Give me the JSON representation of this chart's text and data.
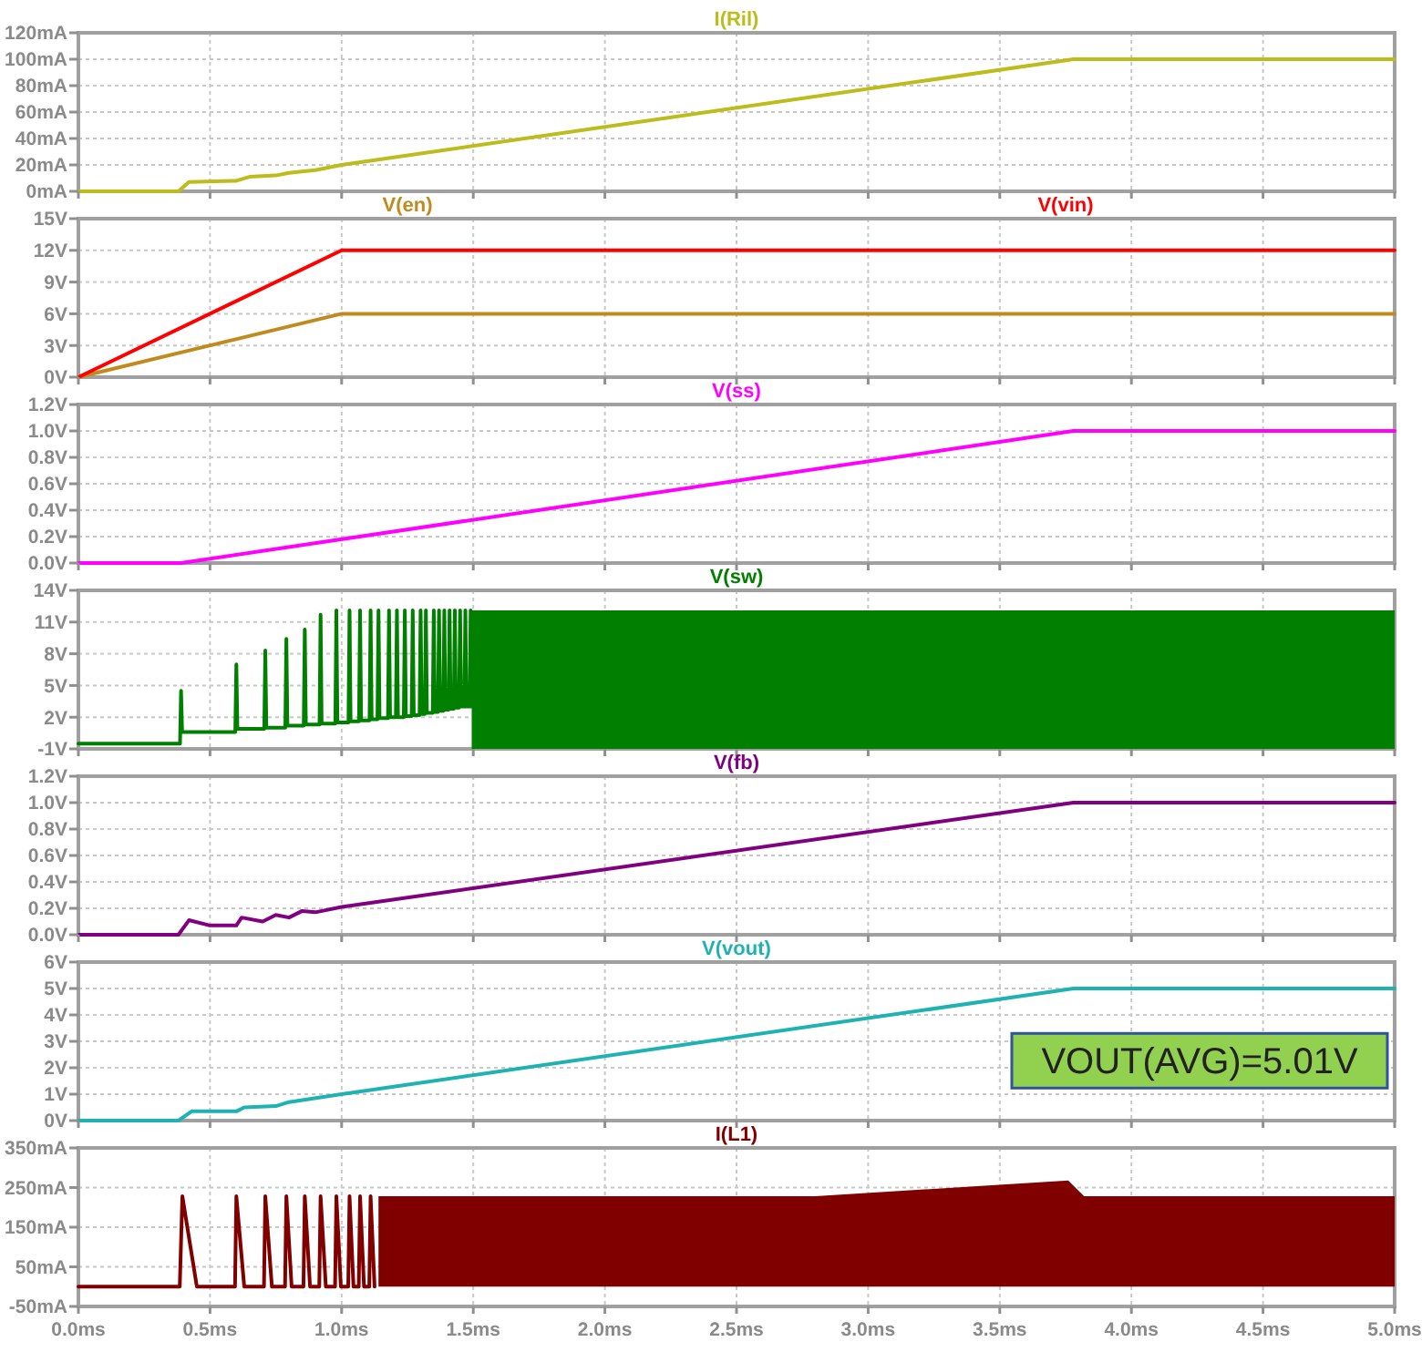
{
  "chart_data": [
    {
      "type": "line",
      "grid": true,
      "tick_labels": "y",
      "xlim": [
        0,
        5
      ],
      "xticks": [
        {
          "value": 0,
          "label": null
        },
        {
          "value": 0.5,
          "label": null
        },
        {
          "value": 1,
          "label": null
        },
        {
          "value": 1.5,
          "label": null
        },
        {
          "value": 2,
          "label": null
        },
        {
          "value": 2.5,
          "label": null
        },
        {
          "value": 3,
          "label": null
        },
        {
          "value": 3.5,
          "label": null
        },
        {
          "value": 4,
          "label": null
        },
        {
          "value": 4.5,
          "label": null
        },
        {
          "value": 5,
          "label": null
        }
      ],
      "ylim": [
        0,
        120
      ],
      "yticks": [
        {
          "value": 0,
          "label": "0mA"
        },
        {
          "value": 20,
          "label": "20mA"
        },
        {
          "value": 40,
          "label": "40mA"
        },
        {
          "value": 60,
          "label": "60mA"
        },
        {
          "value": 80,
          "label": "80mA"
        },
        {
          "value": 100,
          "label": "100mA"
        },
        {
          "value": 120,
          "label": "120mA"
        }
      ],
      "series": [
        {
          "name": "I(Ril)",
          "color": "#bcbc1c",
          "x": [
            0,
            0.38,
            0.42,
            0.6,
            0.65,
            0.75,
            0.8,
            0.9,
            1.0,
            3.78,
            5
          ],
          "values": [
            0,
            0,
            7,
            8,
            11,
            12,
            14,
            16,
            20,
            100,
            100
          ]
        }
      ]
    },
    {
      "type": "line",
      "grid": true,
      "tick_labels": "y",
      "xlim": [
        0,
        5
      ],
      "xticks": [
        {
          "value": 0,
          "label": null
        },
        {
          "value": 0.5,
          "label": null
        },
        {
          "value": 1,
          "label": null
        },
        {
          "value": 1.5,
          "label": null
        },
        {
          "value": 2,
          "label": null
        },
        {
          "value": 2.5,
          "label": null
        },
        {
          "value": 3,
          "label": null
        },
        {
          "value": 3.5,
          "label": null
        },
        {
          "value": 4,
          "label": null
        },
        {
          "value": 4.5,
          "label": null
        },
        {
          "value": 5,
          "label": null
        }
      ],
      "ylim": [
        0,
        15
      ],
      "yticks": [
        {
          "value": 0,
          "label": "0V"
        },
        {
          "value": 3,
          "label": "3V"
        },
        {
          "value": 6,
          "label": "6V"
        },
        {
          "value": 9,
          "label": "9V"
        },
        {
          "value": 12,
          "label": "12V"
        },
        {
          "value": 15,
          "label": "15V"
        }
      ],
      "series": [
        {
          "name": "V(en)",
          "color": "#c08a1e",
          "x": [
            0,
            1,
            5
          ],
          "values": [
            0,
            6,
            6
          ]
        },
        {
          "name": "V(vin)",
          "color": "#ff0000",
          "x": [
            0,
            1,
            5
          ],
          "values": [
            0,
            12,
            12
          ]
        }
      ]
    },
    {
      "type": "line",
      "grid": true,
      "tick_labels": "y",
      "xlim": [
        0,
        5
      ],
      "xticks": [
        {
          "value": 0,
          "label": null
        },
        {
          "value": 0.5,
          "label": null
        },
        {
          "value": 1,
          "label": null
        },
        {
          "value": 1.5,
          "label": null
        },
        {
          "value": 2,
          "label": null
        },
        {
          "value": 2.5,
          "label": null
        },
        {
          "value": 3,
          "label": null
        },
        {
          "value": 3.5,
          "label": null
        },
        {
          "value": 4,
          "label": null
        },
        {
          "value": 4.5,
          "label": null
        },
        {
          "value": 5,
          "label": null
        }
      ],
      "ylim": [
        0,
        1.2
      ],
      "yticks": [
        {
          "value": 0,
          "label": "0.0V"
        },
        {
          "value": 0.2,
          "label": "0.2V"
        },
        {
          "value": 0.4,
          "label": "0.4V"
        },
        {
          "value": 0.6,
          "label": "0.6V"
        },
        {
          "value": 0.8,
          "label": "0.8V"
        },
        {
          "value": 1,
          "label": "1.0V"
        },
        {
          "value": 1.2,
          "label": "1.2V"
        }
      ],
      "series": [
        {
          "name": "V(ss)",
          "color": "#ff00ff",
          "x": [
            0,
            0.39,
            3.78,
            5
          ],
          "values": [
            0,
            0,
            1,
            1
          ]
        }
      ]
    },
    {
      "type": "line",
      "grid": true,
      "tick_labels": "y",
      "xlim": [
        0,
        5
      ],
      "xticks": [
        {
          "value": 0,
          "label": null
        },
        {
          "value": 0.5,
          "label": null
        },
        {
          "value": 1,
          "label": null
        },
        {
          "value": 1.5,
          "label": null
        },
        {
          "value": 2,
          "label": null
        },
        {
          "value": 2.5,
          "label": null
        },
        {
          "value": 3,
          "label": null
        },
        {
          "value": 3.5,
          "label": null
        },
        {
          "value": 4,
          "label": null
        },
        {
          "value": 4.5,
          "label": null
        },
        {
          "value": 5,
          "label": null
        }
      ],
      "ylim": [
        -1,
        14
      ],
      "yticks": [
        {
          "value": -1,
          "label": "-1V"
        },
        {
          "value": 2,
          "label": "2V"
        },
        {
          "value": 5,
          "label": "5V"
        },
        {
          "value": 8,
          "label": "8V"
        },
        {
          "value": 11,
          "label": "11V"
        },
        {
          "value": 14,
          "label": "14V"
        }
      ],
      "series": [
        {
          "name": "V(sw)",
          "color": "#007f00",
          "x": [
            0,
            0.386,
            0.39,
            0.394,
            0.596,
            0.6,
            0.604,
            0.706,
            0.71,
            0.714,
            0.786,
            0.79,
            0.794,
            0.856,
            0.86,
            0.864,
            0.916,
            0.92,
            0.924,
            0.976,
            0.98,
            0.984,
            1.026,
            1.03,
            1.034,
            1.066,
            1.07,
            1.074,
            1.106,
            1.11,
            1.114,
            1.136,
            1.14,
            1.144,
            1.176,
            1.18,
            1.184,
            1.206,
            1.21,
            1.214,
            1.236,
            1.24,
            1.244,
            1.266,
            1.27,
            1.274,
            1.296,
            1.3,
            1.304,
            1.316,
            1.32,
            1.324,
            1.346,
            1.35,
            1.354,
            1.366,
            1.37,
            1.374,
            1.386,
            1.39,
            1.394,
            1.406,
            1.41,
            1.414,
            1.426,
            1.43,
            1.434,
            1.446,
            1.45,
            1.454,
            1.466,
            1.47,
            1.474,
            1.486,
            1.49,
            1.494
          ],
          "values": [
            -0.5,
            -0.5,
            4.5,
            0.6,
            0.6,
            7,
            0.9,
            0.9,
            8.3,
            1,
            1,
            9.4,
            1.2,
            1.2,
            10.3,
            1.3,
            1.3,
            11.7,
            1.4,
            1.4,
            12.1,
            1.5,
            1.5,
            12.1,
            1.6,
            1.6,
            12.1,
            1.7,
            1.7,
            12.1,
            1.8,
            1.8,
            12.1,
            1.9,
            1.9,
            12.1,
            2,
            2,
            12.1,
            2,
            2,
            12.1,
            2.1,
            2.1,
            12.1,
            2.2,
            2.2,
            12.1,
            2.3,
            2.3,
            12.1,
            2.4,
            2.4,
            12.1,
            2.5,
            2.5,
            12.1,
            2.6,
            2.6,
            12.1,
            2.7,
            2.7,
            12.1,
            2.8,
            2.8,
            12.1,
            2.9,
            2.9,
            12.1,
            3,
            3,
            12.1,
            3,
            3,
            12.1,
            3
          ]
        },
        {
          "color": "#007f00",
          "x": [
            1.494,
            5
          ],
          "values": [
            null,
            null
          ],
          "lower": [
            -1,
            -1
          ],
          "upper": [
            12.1,
            12.1
          ]
        }
      ]
    },
    {
      "type": "line",
      "grid": true,
      "tick_labels": "y",
      "xlim": [
        0,
        5
      ],
      "xticks": [
        {
          "value": 0,
          "label": null
        },
        {
          "value": 0.5,
          "label": null
        },
        {
          "value": 1,
          "label": null
        },
        {
          "value": 1.5,
          "label": null
        },
        {
          "value": 2,
          "label": null
        },
        {
          "value": 2.5,
          "label": null
        },
        {
          "value": 3,
          "label": null
        },
        {
          "value": 3.5,
          "label": null
        },
        {
          "value": 4,
          "label": null
        },
        {
          "value": 4.5,
          "label": null
        },
        {
          "value": 5,
          "label": null
        }
      ],
      "ylim": [
        0,
        1.2
      ],
      "yticks": [
        {
          "value": 0,
          "label": "0.0V"
        },
        {
          "value": 0.2,
          "label": "0.2V"
        },
        {
          "value": 0.4,
          "label": "0.4V"
        },
        {
          "value": 0.6,
          "label": "0.6V"
        },
        {
          "value": 0.8,
          "label": "0.8V"
        },
        {
          "value": 1,
          "label": "1.0V"
        },
        {
          "value": 1.2,
          "label": "1.2V"
        }
      ],
      "series": [
        {
          "name": "V(fb)",
          "color": "#800080",
          "x": [
            0,
            0.38,
            0.42,
            0.5,
            0.6,
            0.62,
            0.7,
            0.75,
            0.8,
            0.85,
            0.9,
            1.0,
            3.78,
            5
          ],
          "values": [
            0,
            0,
            0.11,
            0.07,
            0.07,
            0.13,
            0.1,
            0.15,
            0.13,
            0.18,
            0.17,
            0.21,
            1,
            1
          ]
        }
      ]
    },
    {
      "type": "line",
      "grid": true,
      "tick_labels": "y",
      "xlim": [
        0,
        5
      ],
      "xticks": [
        {
          "value": 0,
          "label": null
        },
        {
          "value": 0.5,
          "label": null
        },
        {
          "value": 1,
          "label": null
        },
        {
          "value": 1.5,
          "label": null
        },
        {
          "value": 2,
          "label": null
        },
        {
          "value": 2.5,
          "label": null
        },
        {
          "value": 3,
          "label": null
        },
        {
          "value": 3.5,
          "label": null
        },
        {
          "value": 4,
          "label": null
        },
        {
          "value": 4.5,
          "label": null
        },
        {
          "value": 5,
          "label": null
        }
      ],
      "ylim": [
        0,
        6
      ],
      "yticks": [
        {
          "value": 0,
          "label": "0V"
        },
        {
          "value": 1,
          "label": "1V"
        },
        {
          "value": 2,
          "label": "2V"
        },
        {
          "value": 3,
          "label": "3V"
        },
        {
          "value": 4,
          "label": "4V"
        },
        {
          "value": 5,
          "label": "5V"
        },
        {
          "value": 6,
          "label": "6V"
        }
      ],
      "annotations": [
        "VOUT(AVG)=5.01V"
      ],
      "series": [
        {
          "name": "V(vout)",
          "color": "#20b2b2",
          "x": [
            0,
            0.38,
            0.43,
            0.6,
            0.63,
            0.75,
            0.8,
            1.0,
            3.78,
            5
          ],
          "values": [
            0,
            0,
            0.35,
            0.35,
            0.5,
            0.55,
            0.7,
            1,
            5,
            5
          ]
        }
      ]
    },
    {
      "type": "line",
      "grid": true,
      "xlim": [
        0,
        5
      ],
      "xticks": [
        {
          "value": 0,
          "label": "0.0ms"
        },
        {
          "value": 0.5,
          "label": "0.5ms"
        },
        {
          "value": 1,
          "label": "1.0ms"
        },
        {
          "value": 1.5,
          "label": "1.5ms"
        },
        {
          "value": 2,
          "label": "2.0ms"
        },
        {
          "value": 2.5,
          "label": "2.5ms"
        },
        {
          "value": 3,
          "label": "3.0ms"
        },
        {
          "value": 3.5,
          "label": "3.5ms"
        },
        {
          "value": 4,
          "label": "4.0ms"
        },
        {
          "value": 4.5,
          "label": "4.5ms"
        },
        {
          "value": 5,
          "label": "5.0ms"
        }
      ],
      "ylim": [
        -50,
        350
      ],
      "yticks": [
        {
          "value": -50,
          "label": "-50mA"
        },
        {
          "value": 50,
          "label": "50mA"
        },
        {
          "value": 150,
          "label": "150mA"
        },
        {
          "value": 250,
          "label": "250mA"
        },
        {
          "value": 350,
          "label": "350mA"
        }
      ],
      "series": [
        {
          "name": "I(L1)",
          "color": "#800000",
          "x": [
            0,
            0.385,
            0.395,
            0.45,
            0.595,
            0.6,
            0.63,
            0.705,
            0.71,
            0.735,
            0.785,
            0.79,
            0.81,
            0.855,
            0.86,
            0.88,
            0.915,
            0.92,
            0.94,
            0.975,
            0.98,
            0.997,
            1.025,
            1.03,
            1.045,
            1.065,
            1.07,
            1.085,
            1.105,
            1.11,
            1.125
          ],
          "values": [
            0,
            0,
            228,
            0,
            0,
            228,
            0,
            0,
            228,
            0,
            0,
            228,
            0,
            0,
            228,
            0,
            0,
            228,
            0,
            0,
            228,
            0,
            0,
            228,
            0,
            0,
            228,
            0,
            0,
            228,
            0
          ]
        },
        {
          "color": "#800000",
          "x": [
            1.14,
            2.8,
            3.76,
            3.82,
            5
          ],
          "values": [
            null,
            null,
            null,
            null,
            null
          ],
          "lower": [
            0,
            0,
            0,
            0,
            0
          ],
          "upper": [
            228,
            228,
            268,
            228,
            228
          ]
        }
      ]
    }
  ]
}
